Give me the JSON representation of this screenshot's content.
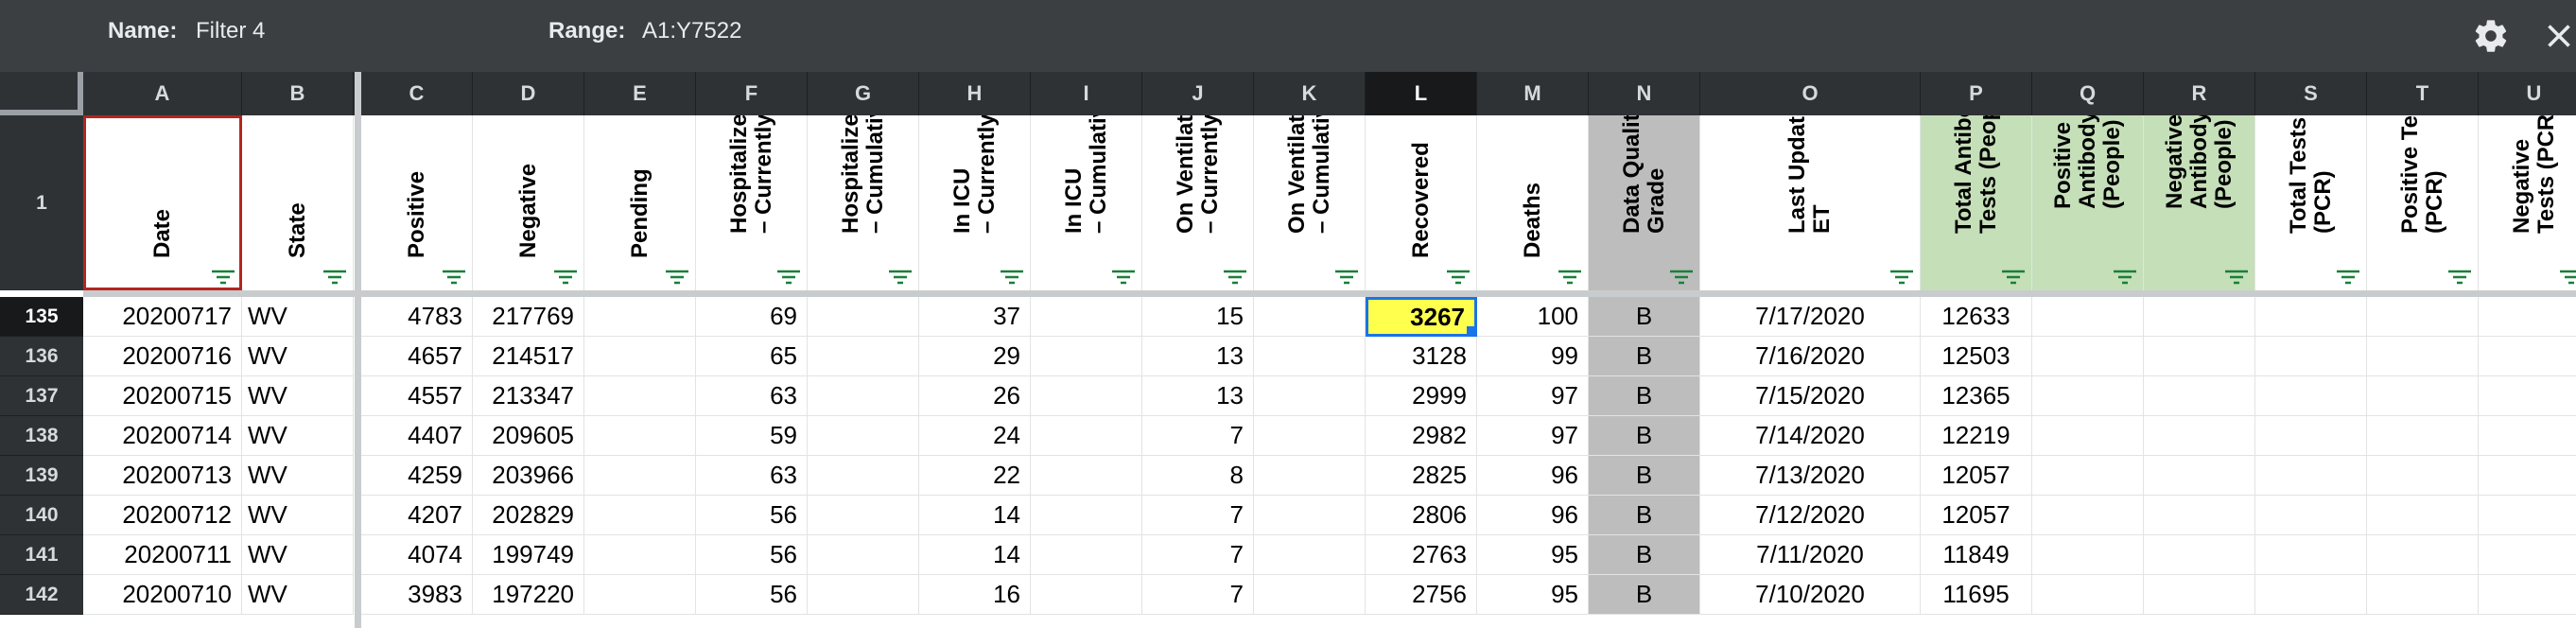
{
  "filter": {
    "name_label": "Name:",
    "name_value": "Filter 4",
    "range_label": "Range:",
    "range_value": "A1:Y7522"
  },
  "columns": [
    "A",
    "B",
    "C",
    "D",
    "E",
    "F",
    "G",
    "H",
    "I",
    "J",
    "K",
    "L",
    "M",
    "N",
    "O",
    "P",
    "Q",
    "R",
    "S",
    "T",
    "U"
  ],
  "selected_column": "L",
  "header_row_number": "1",
  "headers": [
    "Date",
    "State",
    "Positive",
    "Negative",
    "Pending",
    "Hospitalized\n– Currently",
    "Hospitalized\n– Cumulative",
    "In ICU\n– Currently",
    "In ICU\n– Cumulative",
    "On Ventilator\n– Currently",
    "On Ventilator\n– Cumulative",
    "Recovered",
    "Deaths",
    "Data Quality\nGrade",
    "Last Update\nET",
    "Total Antibody\nTests (People)",
    "Positive\nAntibody Tests\n(People)",
    "Negative\nAntibody Tests\n(People)",
    "Total Tests\n(PCR)",
    "Positive Tests\n(PCR)",
    "Negative\nTests (PCR)"
  ],
  "selected_row": "135",
  "rows": [
    {
      "n": "135",
      "cells": [
        "20200717",
        "WV",
        "4783",
        "217769",
        "",
        "69",
        "",
        "37",
        "",
        "15",
        "",
        "3267",
        "100",
        "B",
        "7/17/2020",
        "12633",
        "",
        "",
        "",
        "",
        ""
      ]
    },
    {
      "n": "136",
      "cells": [
        "20200716",
        "WV",
        "4657",
        "214517",
        "",
        "65",
        "",
        "29",
        "",
        "13",
        "",
        "3128",
        "99",
        "B",
        "7/16/2020",
        "12503",
        "",
        "",
        "",
        "",
        ""
      ]
    },
    {
      "n": "137",
      "cells": [
        "20200715",
        "WV",
        "4557",
        "213347",
        "",
        "63",
        "",
        "26",
        "",
        "13",
        "",
        "2999",
        "97",
        "B",
        "7/15/2020",
        "12365",
        "",
        "",
        "",
        "",
        ""
      ]
    },
    {
      "n": "138",
      "cells": [
        "20200714",
        "WV",
        "4407",
        "209605",
        "",
        "59",
        "",
        "24",
        "",
        "7",
        "",
        "2982",
        "97",
        "B",
        "7/14/2020",
        "12219",
        "",
        "",
        "",
        "",
        ""
      ]
    },
    {
      "n": "139",
      "cells": [
        "20200713",
        "WV",
        "4259",
        "203966",
        "",
        "63",
        "",
        "22",
        "",
        "8",
        "",
        "2825",
        "96",
        "B",
        "7/13/2020",
        "12057",
        "",
        "",
        "",
        "",
        ""
      ]
    },
    {
      "n": "140",
      "cells": [
        "20200712",
        "WV",
        "4207",
        "202829",
        "",
        "56",
        "",
        "14",
        "",
        "7",
        "",
        "2806",
        "96",
        "B",
        "7/12/2020",
        "12057",
        "",
        "",
        "",
        "",
        ""
      ]
    },
    {
      "n": "141",
      "cells": [
        "20200711",
        "WV",
        "4074",
        "199749",
        "",
        "56",
        "",
        "14",
        "",
        "7",
        "",
        "2763",
        "95",
        "B",
        "7/11/2020",
        "11849",
        "",
        "",
        "",
        "",
        ""
      ]
    },
    {
      "n": "142",
      "cells": [
        "20200710",
        "WV",
        "3983",
        "197220",
        "",
        "56",
        "",
        "16",
        "",
        "7",
        "",
        "2756",
        "95",
        "B",
        "7/10/2020",
        "11695",
        "",
        "",
        "",
        "",
        ""
      ]
    }
  ],
  "colors": {
    "grade_col_bg": "#bdbdbd",
    "antibody_col_bg": "#c5dfb9",
    "highlight_cell_bg": "#ffff4d",
    "selection_border": "#1a73e8",
    "filter_icon": "#188038"
  },
  "icons": {
    "settings": "gear-icon",
    "close": "close-icon",
    "filter": "filter-icon"
  }
}
